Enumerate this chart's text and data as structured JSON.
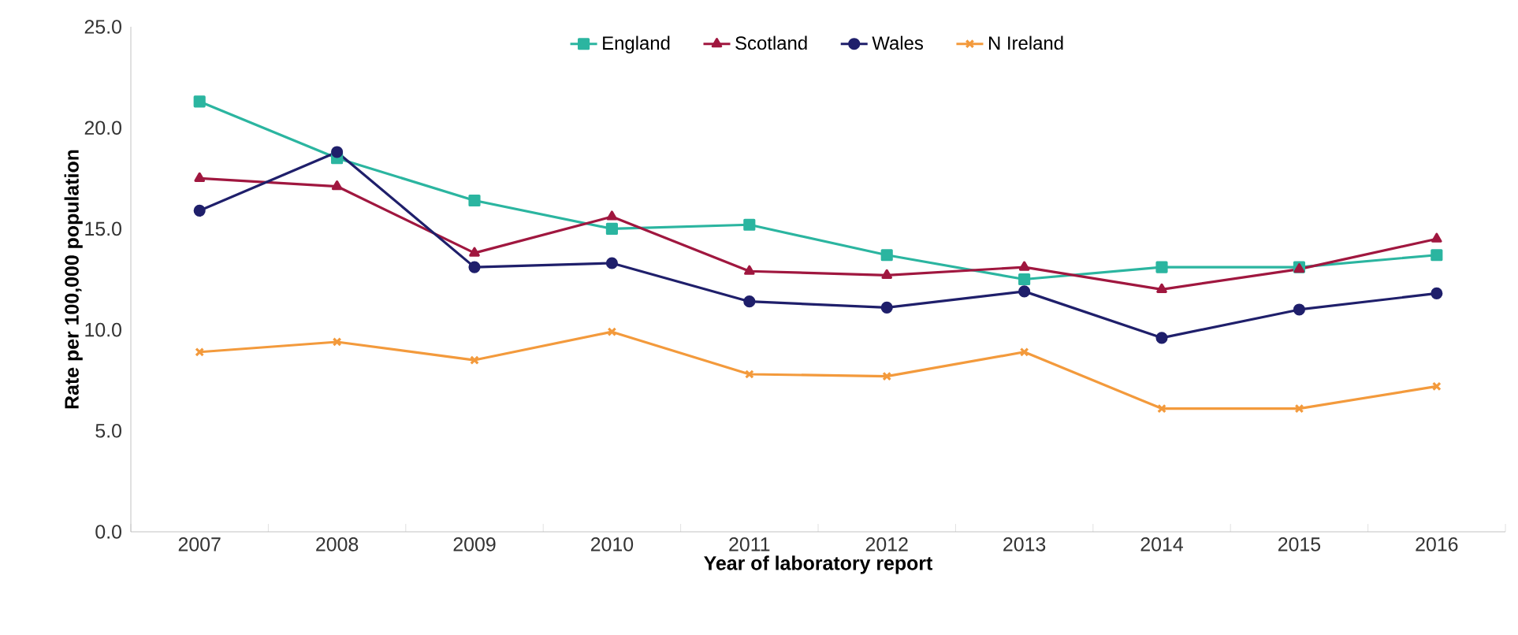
{
  "chart_data": {
    "type": "line",
    "xlabel": "Year of laboratory report",
    "ylabel": "Rate per 100,000 population",
    "categories": [
      "2007",
      "2008",
      "2009",
      "2010",
      "2011",
      "2012",
      "2013",
      "2014",
      "2015",
      "2016"
    ],
    "series": [
      {
        "name": "England",
        "color": "#2bb5a0",
        "marker": "square",
        "values": [
          21.3,
          18.5,
          16.4,
          15.0,
          15.2,
          13.7,
          12.5,
          13.1,
          13.1,
          13.7
        ]
      },
      {
        "name": "Scotland",
        "color": "#a0173f",
        "marker": "triangle",
        "values": [
          17.5,
          17.1,
          13.8,
          15.6,
          12.9,
          12.7,
          13.1,
          12.0,
          13.0,
          14.5
        ]
      },
      {
        "name": "Wales",
        "color": "#1f1f6b",
        "marker": "circle",
        "values": [
          15.9,
          18.8,
          13.1,
          13.3,
          11.4,
          11.1,
          11.9,
          9.6,
          11.0,
          11.8
        ]
      },
      {
        "name": "N Ireland",
        "color": "#f39a3c",
        "marker": "cross",
        "values": [
          8.9,
          9.4,
          8.5,
          9.9,
          7.8,
          7.7,
          8.9,
          6.1,
          6.1,
          7.2
        ]
      }
    ],
    "ylim": [
      0,
      25
    ],
    "yticks": [
      {
        "value": 0,
        "label": "0.0"
      },
      {
        "value": 5,
        "label": "5.0"
      },
      {
        "value": 10,
        "label": "10.0"
      },
      {
        "value": 15,
        "label": "15.0"
      },
      {
        "value": 20,
        "label": "20.0"
      },
      {
        "value": 25,
        "label": "25.0"
      }
    ],
    "legend": "top",
    "grid": false,
    "line_style": "solid"
  }
}
